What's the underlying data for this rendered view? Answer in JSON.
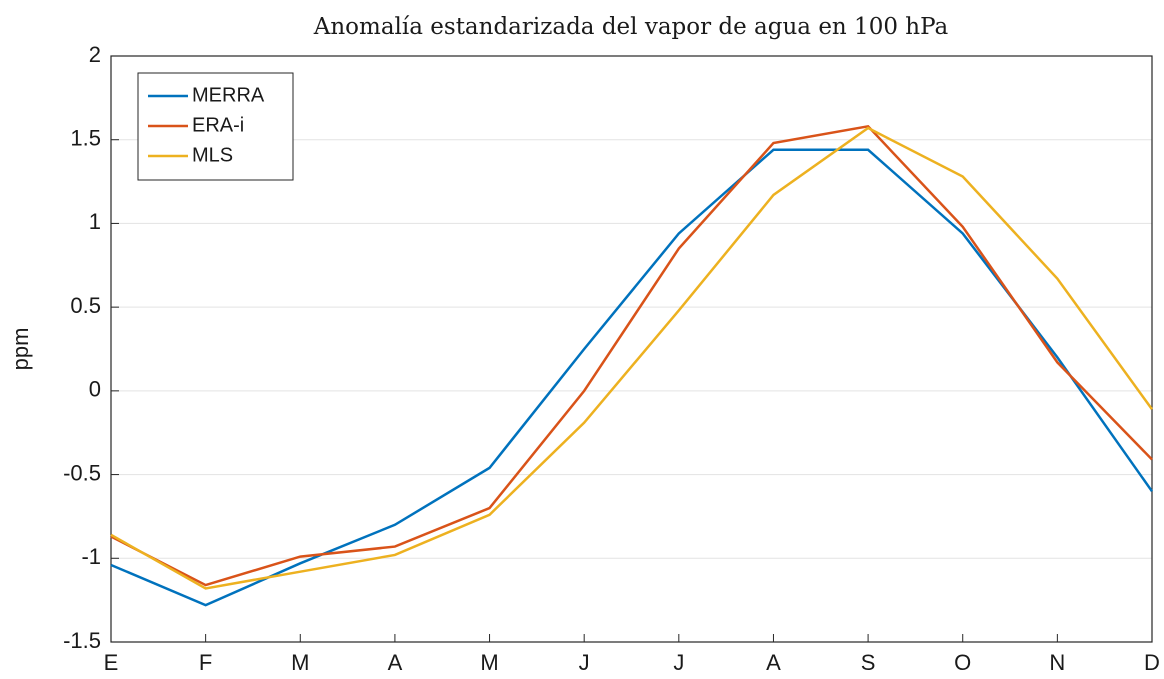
{
  "chart_data": {
    "type": "line",
    "title": "Anomalía estandarizada del vapor de agua en 100 hPa",
    "y_label": "ppm",
    "categories": [
      "E",
      "F",
      "M",
      "A",
      "M",
      "J",
      "J",
      "A",
      "S",
      "O",
      "N",
      "D"
    ],
    "series": [
      {
        "name": "MERRA",
        "color": "#0072bd",
        "values": [
          -1.04,
          -1.28,
          -1.03,
          -0.8,
          -0.46,
          0.25,
          0.94,
          1.44,
          1.44,
          0.94,
          0.2,
          -0.6
        ]
      },
      {
        "name": "ERA-i",
        "color": "#d95319",
        "values": [
          -0.87,
          -1.16,
          -0.99,
          -0.93,
          -0.7,
          0.0,
          0.85,
          1.48,
          1.58,
          0.98,
          0.17,
          -0.41
        ]
      },
      {
        "name": "MLS",
        "color": "#edb120",
        "values": [
          -0.86,
          -1.18,
          -1.08,
          -0.98,
          -0.74,
          -0.19,
          0.48,
          1.17,
          1.57,
          1.28,
          0.67,
          -0.11
        ]
      }
    ],
    "ylim": [
      -1.5,
      2
    ],
    "yticks": [
      -1.5,
      -1,
      -0.5,
      0,
      0.5,
      1,
      1.5,
      2
    ],
    "grid": true,
    "legend": "upper left"
  }
}
